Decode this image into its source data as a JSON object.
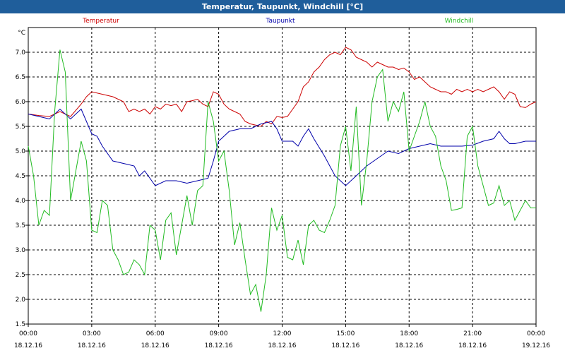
{
  "window": {
    "title": "Temperatur, Taupunkt, Windchill [°C]"
  },
  "chart_data": {
    "type": "line",
    "title": "Temperatur, Taupunkt, Windchill [°C]",
    "y_unit": "°C",
    "ylim": [
      1.5,
      7.5
    ],
    "y_ticks": [
      "7.0",
      "6.5",
      "6.0",
      "5.5",
      "5.0",
      "4.5",
      "4.0",
      "3.5",
      "3.0",
      "2.5",
      "2.0",
      "1.5"
    ],
    "x_hours_range": [
      0,
      24
    ],
    "x_ticks": [
      {
        "time": "00:00",
        "date": "18.12.16"
      },
      {
        "time": "03:00",
        "date": "18.12.16"
      },
      {
        "time": "06:00",
        "date": "18.12.16"
      },
      {
        "time": "09:00",
        "date": "18.12.16"
      },
      {
        "time": "12:00",
        "date": "18.12.16"
      },
      {
        "time": "15:00",
        "date": "18.12.16"
      },
      {
        "time": "18:00",
        "date": "18.12.16"
      },
      {
        "time": "21:00",
        "date": "18.12.16"
      },
      {
        "time": "00:00",
        "date": "19.12.16"
      }
    ],
    "grid": true,
    "legend_position": "top",
    "series": [
      {
        "name": "Temperatur",
        "color": "#cc0000",
        "points": [
          [
            0,
            5.75
          ],
          [
            0.5,
            5.72
          ],
          [
            1,
            5.7
          ],
          [
            1.5,
            5.8
          ],
          [
            2,
            5.7
          ],
          [
            2.5,
            5.95
          ],
          [
            2.75,
            6.1
          ],
          [
            3,
            6.2
          ],
          [
            3.5,
            6.15
          ],
          [
            4,
            6.1
          ],
          [
            4.5,
            6.0
          ],
          [
            4.75,
            5.8
          ],
          [
            5,
            5.85
          ],
          [
            5.25,
            5.8
          ],
          [
            5.5,
            5.85
          ],
          [
            5.75,
            5.75
          ],
          [
            6,
            5.9
          ],
          [
            6.25,
            5.85
          ],
          [
            6.5,
            5.95
          ],
          [
            6.75,
            5.92
          ],
          [
            7,
            5.95
          ],
          [
            7.25,
            5.8
          ],
          [
            7.5,
            6.0
          ],
          [
            7.75,
            6.02
          ],
          [
            8,
            6.05
          ],
          [
            8.25,
            5.95
          ],
          [
            8.5,
            5.9
          ],
          [
            8.75,
            6.2
          ],
          [
            9,
            6.15
          ],
          [
            9.25,
            5.95
          ],
          [
            9.5,
            5.85
          ],
          [
            9.75,
            5.8
          ],
          [
            10,
            5.75
          ],
          [
            10.25,
            5.6
          ],
          [
            10.5,
            5.55
          ],
          [
            11,
            5.5
          ],
          [
            11.25,
            5.6
          ],
          [
            11.5,
            5.55
          ],
          [
            11.75,
            5.7
          ],
          [
            12,
            5.68
          ],
          [
            12.25,
            5.7
          ],
          [
            12.5,
            5.85
          ],
          [
            12.75,
            6.0
          ],
          [
            13,
            6.3
          ],
          [
            13.25,
            6.4
          ],
          [
            13.5,
            6.6
          ],
          [
            13.75,
            6.7
          ],
          [
            14,
            6.85
          ],
          [
            14.25,
            6.95
          ],
          [
            14.5,
            7.0
          ],
          [
            14.75,
            6.95
          ],
          [
            15,
            7.1
          ],
          [
            15.25,
            7.05
          ],
          [
            15.5,
            6.9
          ],
          [
            15.75,
            6.85
          ],
          [
            16,
            6.8
          ],
          [
            16.25,
            6.7
          ],
          [
            16.5,
            6.8
          ],
          [
            16.75,
            6.75
          ],
          [
            17,
            6.7
          ],
          [
            17.25,
            6.7
          ],
          [
            17.5,
            6.65
          ],
          [
            17.75,
            6.68
          ],
          [
            18,
            6.6
          ],
          [
            18.25,
            6.45
          ],
          [
            18.5,
            6.5
          ],
          [
            18.75,
            6.4
          ],
          [
            19,
            6.3
          ],
          [
            19.25,
            6.25
          ],
          [
            19.5,
            6.2
          ],
          [
            19.75,
            6.2
          ],
          [
            20,
            6.15
          ],
          [
            20.25,
            6.25
          ],
          [
            20.5,
            6.2
          ],
          [
            20.75,
            6.25
          ],
          [
            21,
            6.2
          ],
          [
            21.25,
            6.25
          ],
          [
            21.5,
            6.2
          ],
          [
            21.75,
            6.25
          ],
          [
            22,
            6.3
          ],
          [
            22.25,
            6.2
          ],
          [
            22.5,
            6.05
          ],
          [
            22.75,
            6.2
          ],
          [
            23,
            6.15
          ],
          [
            23.25,
            5.9
          ],
          [
            23.5,
            5.88
          ],
          [
            23.75,
            5.95
          ],
          [
            24,
            6.0
          ]
        ]
      },
      {
        "name": "Taupunkt",
        "color": "#0000aa",
        "points": [
          [
            0,
            5.75
          ],
          [
            0.5,
            5.7
          ],
          [
            1,
            5.65
          ],
          [
            1.5,
            5.85
          ],
          [
            2,
            5.65
          ],
          [
            2.5,
            5.85
          ],
          [
            2.75,
            5.6
          ],
          [
            3,
            5.35
          ],
          [
            3.25,
            5.3
          ],
          [
            3.5,
            5.1
          ],
          [
            4,
            4.8
          ],
          [
            4.5,
            4.75
          ],
          [
            5,
            4.7
          ],
          [
            5.25,
            4.5
          ],
          [
            5.5,
            4.6
          ],
          [
            6,
            4.3
          ],
          [
            6.5,
            4.4
          ],
          [
            7,
            4.4
          ],
          [
            7.5,
            4.35
          ],
          [
            8,
            4.4
          ],
          [
            8.5,
            4.45
          ],
          [
            8.75,
            4.8
          ],
          [
            9,
            5.2
          ],
          [
            9.25,
            5.3
          ],
          [
            9.5,
            5.4
          ],
          [
            10,
            5.45
          ],
          [
            10.5,
            5.45
          ],
          [
            11,
            5.55
          ],
          [
            11.5,
            5.6
          ],
          [
            11.75,
            5.45
          ],
          [
            12,
            5.2
          ],
          [
            12.5,
            5.2
          ],
          [
            12.75,
            5.1
          ],
          [
            13,
            5.3
          ],
          [
            13.25,
            5.45
          ],
          [
            13.5,
            5.25
          ],
          [
            14,
            4.9
          ],
          [
            14.25,
            4.7
          ],
          [
            14.5,
            4.5
          ],
          [
            15,
            4.3
          ],
          [
            15.5,
            4.5
          ],
          [
            16,
            4.7
          ],
          [
            16.5,
            4.85
          ],
          [
            17,
            5.0
          ],
          [
            17.5,
            4.95
          ],
          [
            18,
            5.05
          ],
          [
            18.5,
            5.1
          ],
          [
            19,
            5.15
          ],
          [
            19.5,
            5.1
          ],
          [
            20,
            5.1
          ],
          [
            20.5,
            5.1
          ],
          [
            21,
            5.12
          ],
          [
            21.5,
            5.2
          ],
          [
            22,
            5.25
          ],
          [
            22.25,
            5.4
          ],
          [
            22.5,
            5.25
          ],
          [
            22.75,
            5.15
          ],
          [
            23,
            5.15
          ],
          [
            23.5,
            5.2
          ],
          [
            24,
            5.2
          ]
        ]
      },
      {
        "name": "Windchill",
        "color": "#22bb22",
        "points": [
          [
            0,
            5.1
          ],
          [
            0.25,
            4.5
          ],
          [
            0.5,
            3.5
          ],
          [
            0.75,
            3.8
          ],
          [
            1,
            3.7
          ],
          [
            1.25,
            5.8
          ],
          [
            1.5,
            7.05
          ],
          [
            1.75,
            6.6
          ],
          [
            2,
            4.0
          ],
          [
            2.25,
            4.6
          ],
          [
            2.5,
            5.2
          ],
          [
            2.75,
            4.8
          ],
          [
            3,
            3.4
          ],
          [
            3.25,
            3.35
          ],
          [
            3.5,
            4.0
          ],
          [
            3.75,
            3.9
          ],
          [
            4,
            3.0
          ],
          [
            4.25,
            2.8
          ],
          [
            4.5,
            2.5
          ],
          [
            4.75,
            2.55
          ],
          [
            5,
            2.8
          ],
          [
            5.25,
            2.7
          ],
          [
            5.5,
            2.5
          ],
          [
            5.75,
            3.5
          ],
          [
            6,
            3.4
          ],
          [
            6.25,
            2.8
          ],
          [
            6.5,
            3.6
          ],
          [
            6.75,
            3.75
          ],
          [
            7,
            2.9
          ],
          [
            7.25,
            3.5
          ],
          [
            7.5,
            4.1
          ],
          [
            7.75,
            3.5
          ],
          [
            8,
            4.2
          ],
          [
            8.25,
            4.3
          ],
          [
            8.5,
            6.0
          ],
          [
            8.75,
            5.6
          ],
          [
            9,
            4.8
          ],
          [
            9.25,
            5.0
          ],
          [
            9.5,
            4.2
          ],
          [
            9.75,
            3.1
          ],
          [
            10,
            3.55
          ],
          [
            10.25,
            2.8
          ],
          [
            10.5,
            2.1
          ],
          [
            10.75,
            2.3
          ],
          [
            11,
            1.75
          ],
          [
            11.25,
            2.5
          ],
          [
            11.5,
            3.85
          ],
          [
            11.75,
            3.4
          ],
          [
            12,
            3.7
          ],
          [
            12.25,
            2.85
          ],
          [
            12.5,
            2.8
          ],
          [
            12.75,
            3.2
          ],
          [
            13,
            2.7
          ],
          [
            13.25,
            3.5
          ],
          [
            13.5,
            3.6
          ],
          [
            13.75,
            3.4
          ],
          [
            14,
            3.35
          ],
          [
            14.25,
            3.6
          ],
          [
            14.5,
            3.9
          ],
          [
            14.75,
            5.1
          ],
          [
            15,
            5.5
          ],
          [
            15.25,
            4.6
          ],
          [
            15.5,
            5.9
          ],
          [
            15.75,
            3.9
          ],
          [
            16,
            4.8
          ],
          [
            16.25,
            6.0
          ],
          [
            16.5,
            6.5
          ],
          [
            16.75,
            6.65
          ],
          [
            17,
            5.6
          ],
          [
            17.25,
            6.0
          ],
          [
            17.5,
            5.8
          ],
          [
            17.75,
            6.2
          ],
          [
            18,
            5.0
          ],
          [
            18.25,
            5.3
          ],
          [
            18.5,
            5.6
          ],
          [
            18.75,
            6.0
          ],
          [
            19,
            5.5
          ],
          [
            19.25,
            5.3
          ],
          [
            19.5,
            4.7
          ],
          [
            19.75,
            4.4
          ],
          [
            20,
            3.8
          ],
          [
            20.25,
            3.82
          ],
          [
            20.5,
            3.85
          ],
          [
            20.75,
            5.3
          ],
          [
            21,
            5.5
          ],
          [
            21.25,
            4.7
          ],
          [
            21.5,
            4.3
          ],
          [
            21.75,
            3.9
          ],
          [
            22,
            3.95
          ],
          [
            22.25,
            4.3
          ],
          [
            22.5,
            3.9
          ],
          [
            22.75,
            4.0
          ],
          [
            23,
            3.6
          ],
          [
            23.25,
            3.8
          ],
          [
            23.5,
            4.0
          ],
          [
            23.75,
            3.85
          ],
          [
            24,
            3.85
          ]
        ]
      }
    ]
  }
}
